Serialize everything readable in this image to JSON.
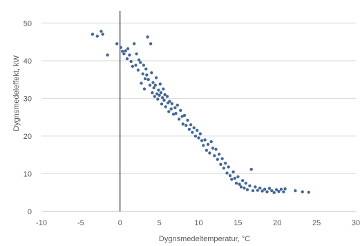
{
  "chart_data": {
    "type": "scatter",
    "title": "",
    "xlabel": "Dygnsmedeltemperatur, °C",
    "ylabel": "Dygnsmedeleffekt, kW",
    "xlim": [
      -10,
      30
    ],
    "ylim": [
      0,
      55
    ],
    "x_ticks": [
      "-10",
      "-5",
      "0",
      "5",
      "10",
      "15",
      "20",
      "25",
      "30"
    ],
    "y_ticks": [
      "0",
      "10",
      "20",
      "30",
      "40",
      "50"
    ],
    "grid": "horizontal",
    "legend": "none",
    "vertical_reference_line": 0,
    "colors": {
      "marker": "#43679b",
      "grid": "#d9d9d9",
      "axis": "#bfbfbf",
      "reference_line": "#000000",
      "text": "#595959"
    },
    "series": [
      {
        "points": [
          [
            -3.5,
            47
          ],
          [
            -2.9,
            46.5
          ],
          [
            -2.4,
            47.8
          ],
          [
            -2.2,
            47
          ],
          [
            -1.6,
            41.5
          ],
          [
            -0.4,
            44.5
          ],
          [
            0.1,
            43.5
          ],
          [
            0.3,
            42.5
          ],
          [
            0.5,
            41.8
          ],
          [
            0.7,
            42.6
          ],
          [
            0.9,
            40.5
          ],
          [
            1.0,
            43.2
          ],
          [
            1.2,
            41.5
          ],
          [
            1.4,
            39.8
          ],
          [
            1.6,
            38.5
          ],
          [
            1.8,
            44.5
          ],
          [
            2.0,
            38.8
          ],
          [
            2.1,
            41.8
          ],
          [
            2.3,
            37.5
          ],
          [
            2.4,
            40.2
          ],
          [
            2.6,
            39.5
          ],
          [
            2.7,
            34
          ],
          [
            2.9,
            36.5
          ],
          [
            3.0,
            38.8
          ],
          [
            3.1,
            32.5
          ],
          [
            3.2,
            35.2
          ],
          [
            3.3,
            37.8
          ],
          [
            3.4,
            36.2
          ],
          [
            3.5,
            46.3
          ],
          [
            3.6,
            35
          ],
          [
            3.8,
            33.5
          ],
          [
            3.9,
            44.5
          ],
          [
            4.0,
            36.8
          ],
          [
            4.1,
            31.5
          ],
          [
            4.2,
            34.2
          ],
          [
            4.3,
            32.8
          ],
          [
            4.4,
            30.5
          ],
          [
            4.5,
            33.5
          ],
          [
            4.6,
            35.5
          ],
          [
            4.7,
            31.2
          ],
          [
            4.8,
            29.8
          ],
          [
            4.9,
            32.2
          ],
          [
            5.0,
            30.8
          ],
          [
            5.1,
            33.8
          ],
          [
            5.2,
            31.5
          ],
          [
            5.3,
            28.5
          ],
          [
            5.4,
            30.2
          ],
          [
            5.5,
            32.5
          ],
          [
            5.6,
            29.5
          ],
          [
            5.7,
            31
          ],
          [
            5.8,
            27.8
          ],
          [
            6.0,
            30.5
          ],
          [
            6.1,
            28.8
          ],
          [
            6.2,
            26.5
          ],
          [
            6.3,
            29.2
          ],
          [
            6.5,
            27.2
          ],
          [
            6.6,
            28.6
          ],
          [
            6.8,
            25.8
          ],
          [
            7.0,
            27.5
          ],
          [
            7.1,
            26
          ],
          [
            7.3,
            28.2
          ],
          [
            7.5,
            24.5
          ],
          [
            7.7,
            26.8
          ],
          [
            7.9,
            25.2
          ],
          [
            8.0,
            23.2
          ],
          [
            8.2,
            25.5
          ],
          [
            8.4,
            22.8
          ],
          [
            8.6,
            24.2
          ],
          [
            8.8,
            21.8
          ],
          [
            9.0,
            23
          ],
          [
            9.2,
            21
          ],
          [
            9.4,
            22.2
          ],
          [
            9.6,
            20
          ],
          [
            9.8,
            21.5
          ],
          [
            10.0,
            19.5
          ],
          [
            10.2,
            20.6
          ],
          [
            10.4,
            18.8
          ],
          [
            10.6,
            17.5
          ],
          [
            10.8,
            19
          ],
          [
            11.0,
            16.2
          ],
          [
            11.2,
            17.8
          ],
          [
            11.4,
            15.5
          ],
          [
            11.6,
            18.5
          ],
          [
            11.8,
            16.8
          ],
          [
            12.0,
            14.8
          ],
          [
            12.2,
            16.5
          ],
          [
            12.4,
            13.8
          ],
          [
            12.6,
            15.2
          ],
          [
            12.8,
            12.5
          ],
          [
            13.0,
            14
          ],
          [
            13.2,
            11.5
          ],
          [
            13.4,
            12.8
          ],
          [
            13.6,
            10.2
          ],
          [
            13.8,
            11.8
          ],
          [
            14.0,
            9.5
          ],
          [
            14.2,
            8.5
          ],
          [
            14.4,
            10.5
          ],
          [
            14.6,
            8.8
          ],
          [
            14.8,
            7.5
          ],
          [
            15.0,
            9.2
          ],
          [
            15.2,
            7.2
          ],
          [
            15.4,
            6.5
          ],
          [
            15.6,
            8.2
          ],
          [
            15.8,
            6.2
          ],
          [
            16.0,
            7.5
          ],
          [
            16.2,
            5.8
          ],
          [
            16.5,
            6.8
          ],
          [
            16.7,
            11.2
          ],
          [
            16.9,
            5.5
          ],
          [
            17.2,
            6.5
          ],
          [
            17.5,
            5.6
          ],
          [
            17.8,
            6.2
          ],
          [
            18.1,
            5.4
          ],
          [
            18.4,
            5.9
          ],
          [
            18.7,
            5.2
          ],
          [
            19.0,
            6.1
          ],
          [
            19.3,
            5.5
          ],
          [
            19.6,
            5
          ],
          [
            19.9,
            5.8
          ],
          [
            20.2,
            5.3
          ],
          [
            20.5,
            5.9
          ],
          [
            20.8,
            5.2
          ],
          [
            21.0,
            6
          ],
          [
            22.3,
            5.5
          ],
          [
            23.2,
            5.2
          ],
          [
            24.0,
            5.1
          ]
        ]
      }
    ]
  }
}
